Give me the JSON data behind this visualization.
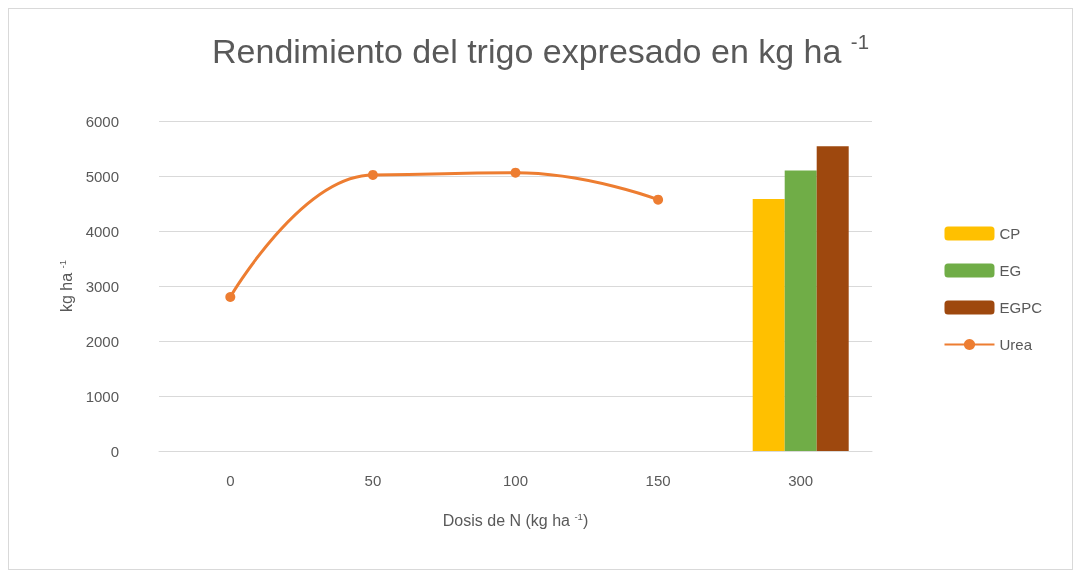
{
  "chart_data": {
    "type": "bar",
    "title": "Rendimiento del trigo expresado en kg ha $^{-1}$",
    "xlabel": "Dosis de N (kg ha $^{-1}$)",
    "ylabel": "kg ha $^{-1}$",
    "categories": [
      "0",
      "50",
      "100",
      "150",
      "300"
    ],
    "series": [
      {
        "name": "CP",
        "color": "#ffc000",
        "values": [
          null,
          null,
          null,
          null,
          4580
        ]
      },
      {
        "name": "EG",
        "color": "#70ad47",
        "values": [
          null,
          null,
          null,
          null,
          5100
        ]
      },
      {
        "name": "EGPC",
        "color": "#9e480e",
        "values": [
          null,
          null,
          null,
          null,
          5540
        ]
      },
      {
        "name": "Urea",
        "type": "line",
        "color": "#ed7d31",
        "marker": "circle",
        "values": [
          2800,
          5020,
          5060,
          4570,
          null
        ]
      }
    ],
    "ylim": [
      0,
      6000
    ],
    "yticks": [
      0,
      1000,
      2000,
      3000,
      4000,
      5000,
      6000
    ],
    "grid": "y",
    "legend": "right"
  }
}
